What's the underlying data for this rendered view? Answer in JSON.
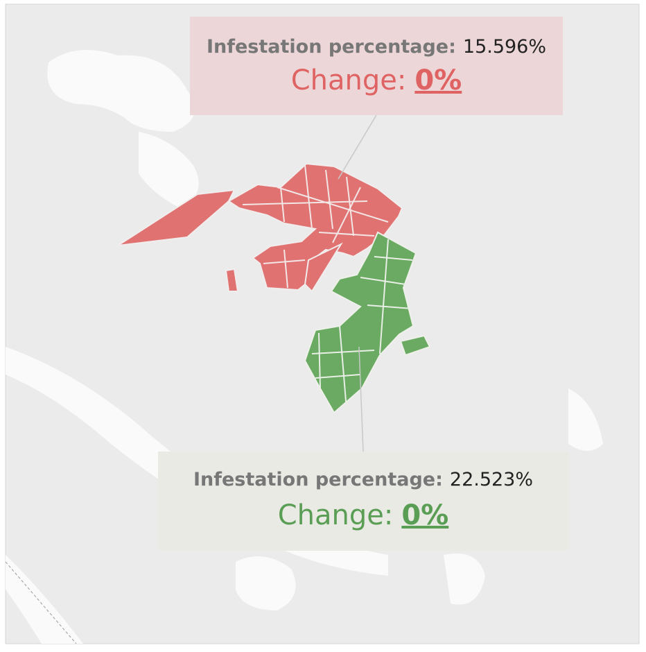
{
  "annotations": [
    {
      "label": "Infestation percentage:",
      "value": "15.596%",
      "change_label": "Change:",
      "change_value": "0%"
    },
    {
      "label": "Infestation percentage:",
      "value": "22.523%",
      "change_label": "Change:",
      "change_value": "0%"
    }
  ]
}
